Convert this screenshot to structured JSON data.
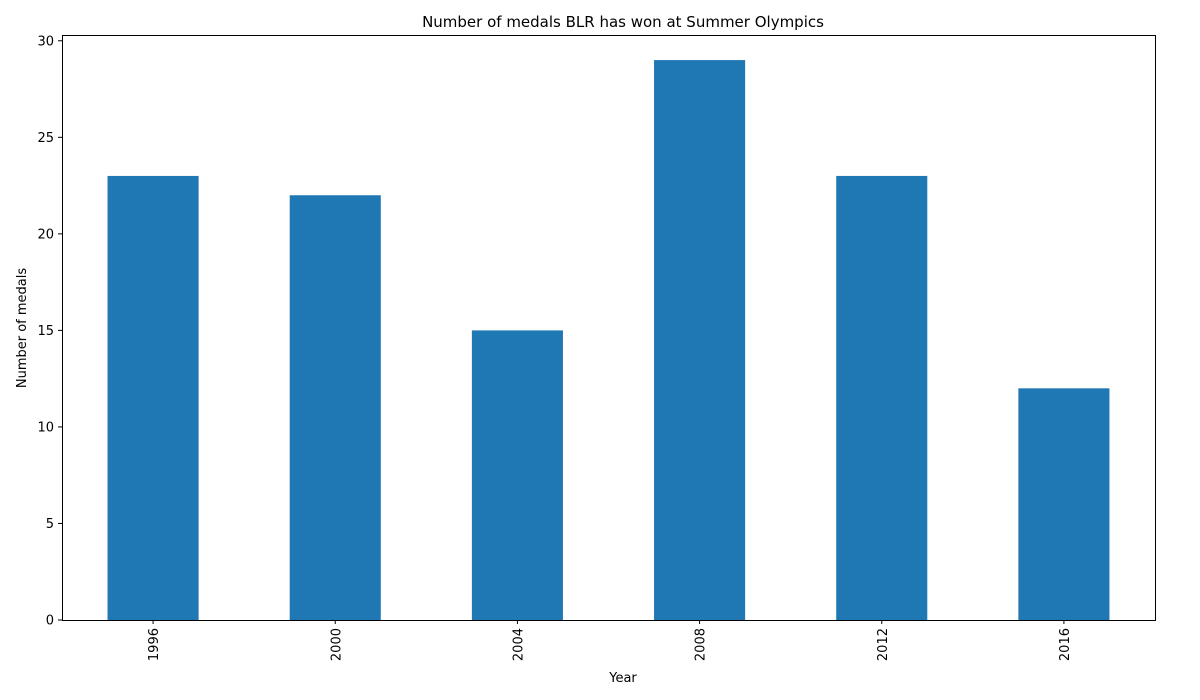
{
  "chart_data": {
    "type": "bar",
    "title": "Number of medals BLR has won at Summer Olympics",
    "xlabel": "Year",
    "ylabel": "Number of medals",
    "categories": [
      "1996",
      "2000",
      "2004",
      "2008",
      "2012",
      "2016"
    ],
    "values": [
      23,
      22,
      15,
      29,
      23,
      12
    ],
    "ylim": [
      0,
      30.3
    ],
    "yticks": [
      0,
      5,
      10,
      15,
      20,
      25,
      30
    ],
    "x_tick_rotation": "vertical",
    "bar_color": "#1f77b4",
    "grid": false,
    "legend": "none"
  }
}
